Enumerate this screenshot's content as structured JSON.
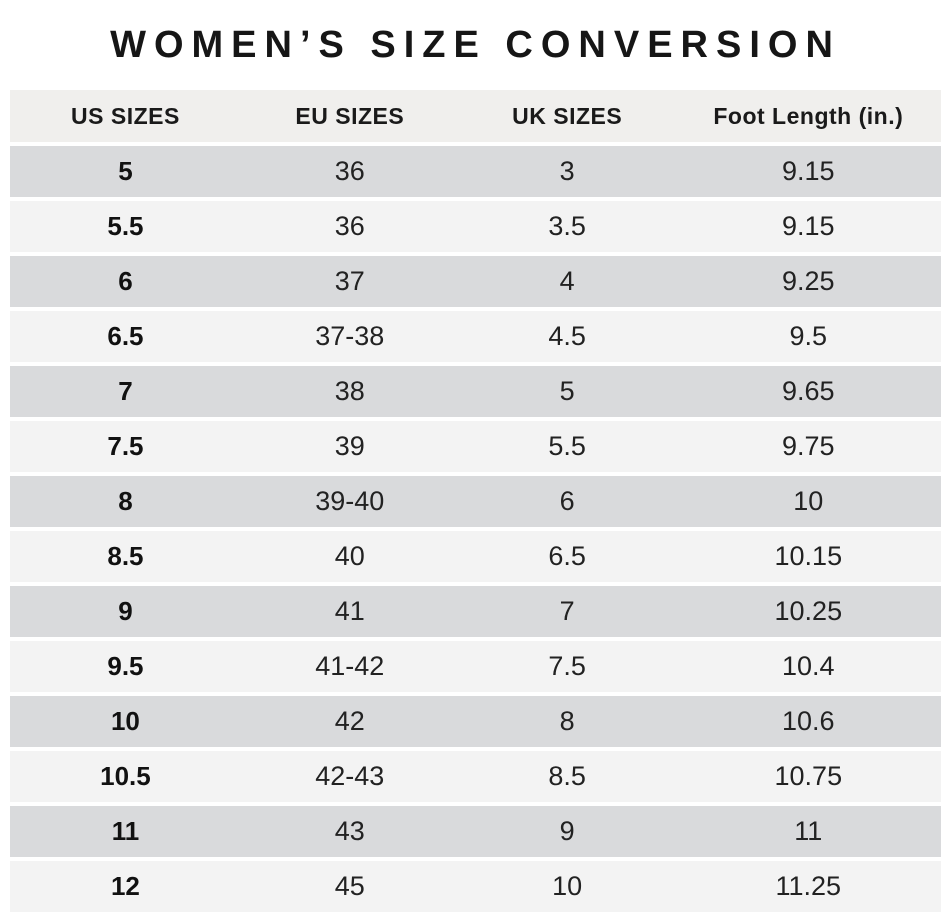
{
  "page": {
    "title": "WOMEN’S SIZE CONVERSION"
  },
  "colors": {
    "page_bg": "#ffffff",
    "header_bg": "#f0efed",
    "row_dark": "#d9dadc",
    "row_light": "#f3f3f3",
    "text": "#1c1c1c"
  },
  "chart_data": {
    "type": "table",
    "title": "WOMEN’S SIZE CONVERSION",
    "columns": [
      "US SIZES",
      "EU SIZES",
      "UK SIZES",
      "Foot Length (in.)"
    ],
    "rows": [
      [
        "5",
        "36",
        "3",
        "9.15"
      ],
      [
        "5.5",
        "36",
        "3.5",
        "9.15"
      ],
      [
        "6",
        "37",
        "4",
        "9.25"
      ],
      [
        "6.5",
        "37-38",
        "4.5",
        "9.5"
      ],
      [
        "7",
        "38",
        "5",
        "9.65"
      ],
      [
        "7.5",
        "39",
        "5.5",
        "9.75"
      ],
      [
        "8",
        "39-40",
        "6",
        "10"
      ],
      [
        "8.5",
        "40",
        "6.5",
        "10.15"
      ],
      [
        "9",
        "41",
        "7",
        "10.25"
      ],
      [
        "9.5",
        "41-42",
        "7.5",
        "10.4"
      ],
      [
        "10",
        "42",
        "8",
        "10.6"
      ],
      [
        "10.5",
        "42-43",
        "8.5",
        "10.75"
      ],
      [
        "11",
        "43",
        "9",
        "11"
      ],
      [
        "12",
        "45",
        "10",
        "11.25"
      ]
    ],
    "layout": {
      "stripes": "alternating, first data row dark",
      "legend": "none",
      "grid": "horizontal striped rows separated by white gaps"
    }
  }
}
